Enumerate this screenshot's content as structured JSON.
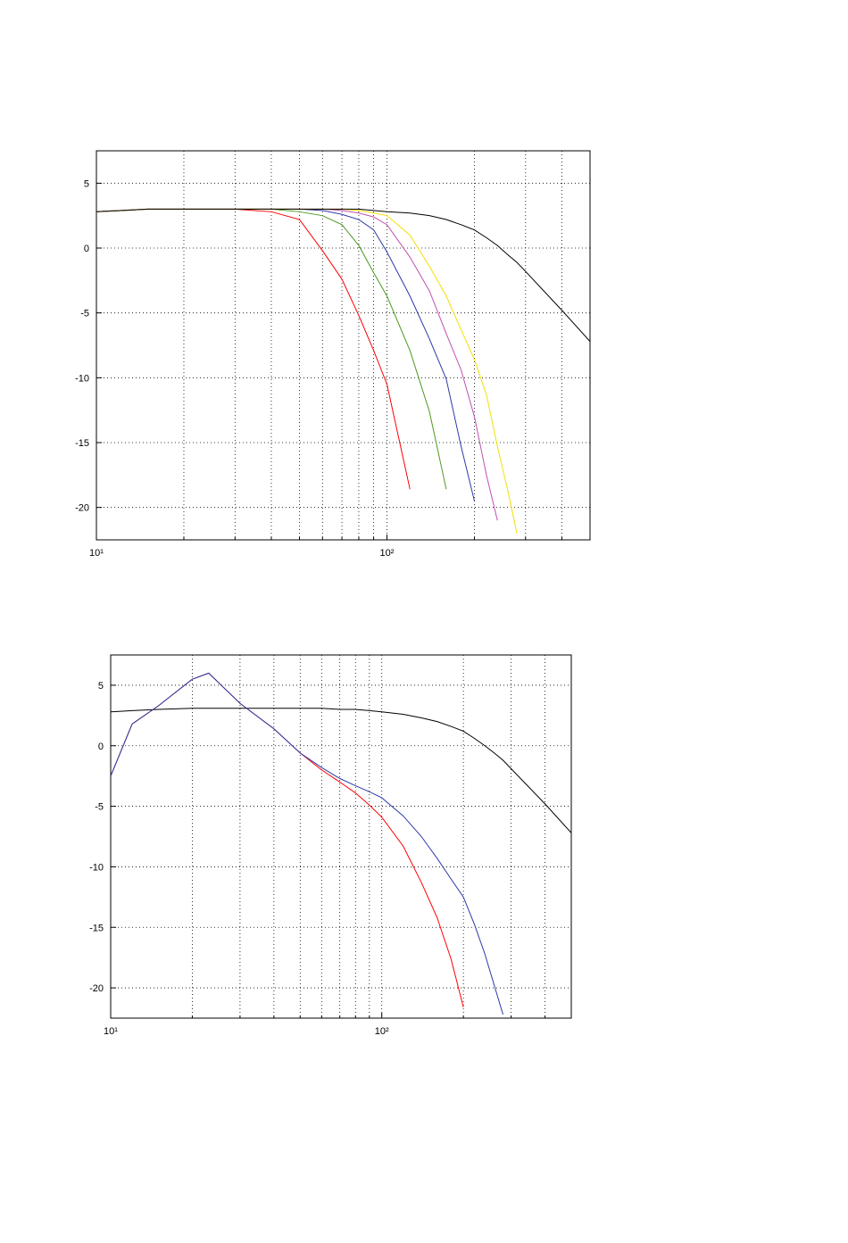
{
  "chart_data": [
    {
      "type": "line",
      "xscale": "log",
      "grid": true,
      "xlim": [
        10,
        500
      ],
      "ylim": [
        -22.5,
        7.5
      ],
      "xticks": [
        {
          "value": 10,
          "label": "10¹"
        },
        {
          "value": 100,
          "label": "10²"
        }
      ],
      "xminorticks": [
        20,
        30,
        40,
        50,
        60,
        70,
        80,
        90,
        200,
        300,
        400
      ],
      "yticks": [
        -20,
        -15,
        -10,
        -5,
        0,
        5
      ],
      "x": [
        10,
        15,
        20,
        30,
        40,
        50,
        60,
        70,
        80,
        90,
        100,
        120,
        140,
        160,
        180,
        200,
        220,
        240,
        260,
        280,
        300,
        400,
        500
      ],
      "series": [
        {
          "color": "#ff0000",
          "values": [
            2.8,
            3.0,
            3.0,
            3.0,
            2.8,
            2.2,
            -0.2,
            -2.4,
            -5.2,
            -7.9,
            -10.5,
            -18.6,
            null,
            null,
            null,
            null,
            null,
            null,
            null,
            null,
            null,
            null,
            null
          ]
        },
        {
          "color": "#4d9a1f",
          "values": [
            2.8,
            3.0,
            3.0,
            3.0,
            3.0,
            2.8,
            2.5,
            1.8,
            0.2,
            -1.9,
            -3.7,
            -7.9,
            -12.6,
            -18.6,
            null,
            null,
            null,
            null,
            null,
            null,
            null,
            null,
            null
          ]
        },
        {
          "color": "#2b3aa8",
          "values": [
            2.8,
            3.0,
            3.0,
            3.0,
            3.0,
            3.0,
            2.9,
            2.6,
            2.2,
            1.4,
            -0.3,
            -3.7,
            -7.0,
            -10.1,
            -15.3,
            -19.5,
            null,
            null,
            null,
            null,
            null,
            null,
            null
          ]
        },
        {
          "color": "#c050b0",
          "values": [
            2.8,
            3.0,
            3.0,
            3.0,
            3.0,
            3.0,
            3.0,
            2.9,
            2.7,
            2.4,
            1.8,
            -0.7,
            -3.3,
            -6.6,
            -9.4,
            -13.0,
            -17.5,
            -21.0,
            null,
            null,
            null,
            null,
            null
          ]
        },
        {
          "color": "#f2e000",
          "values": [
            2.8,
            3.0,
            3.0,
            3.0,
            3.0,
            3.0,
            3.0,
            3.0,
            2.9,
            2.7,
            2.5,
            1.0,
            -1.4,
            -3.7,
            -6.3,
            -8.6,
            -11.3,
            -15.3,
            -18.6,
            -22.0,
            null,
            null,
            null
          ]
        },
        {
          "color": "#000000",
          "values": [
            2.8,
            3.0,
            3.0,
            3.0,
            3.0,
            3.0,
            3.0,
            3.0,
            3.0,
            2.9,
            2.8,
            2.7,
            2.5,
            2.2,
            1.8,
            1.4,
            0.8,
            0.2,
            -0.5,
            -1.1,
            -1.8,
            -4.8,
            -7.2
          ]
        }
      ]
    },
    {
      "type": "line",
      "xscale": "log",
      "grid": true,
      "xlim": [
        10,
        500
      ],
      "ylim": [
        -22.5,
        7.5
      ],
      "xticks": [
        {
          "value": 10,
          "label": "10¹"
        },
        {
          "value": 100,
          "label": "10²"
        }
      ],
      "xminorticks": [
        20,
        30,
        40,
        50,
        60,
        70,
        80,
        90,
        200,
        300,
        400
      ],
      "yticks": [
        -20,
        -15,
        -10,
        -5,
        0,
        5
      ],
      "x": [
        10,
        12,
        15,
        20,
        23,
        30,
        40,
        50,
        60,
        70,
        80,
        90,
        100,
        120,
        140,
        160,
        180,
        200,
        220,
        240,
        260,
        280,
        300,
        400,
        500
      ],
      "series": [
        {
          "color": "#000000",
          "values": [
            2.8,
            2.9,
            3.0,
            3.1,
            3.1,
            3.1,
            3.1,
            3.1,
            3.1,
            3.0,
            3.0,
            2.9,
            2.8,
            2.6,
            2.3,
            2.0,
            1.6,
            1.2,
            0.6,
            0,
            -0.6,
            -1.2,
            -1.9,
            -4.8,
            -7.2
          ]
        },
        {
          "color": "#ff0000",
          "values": [
            -2.5,
            1.8,
            3.3,
            5.5,
            6.0,
            3.5,
            1.4,
            -0.6,
            -2.0,
            -3.0,
            -3.9,
            -4.9,
            -5.9,
            -8.3,
            -11.3,
            -14.2,
            -17.6,
            -21.6,
            null,
            null,
            null,
            null,
            null,
            null,
            null
          ]
        },
        {
          "color": "#2b3aa8",
          "values": [
            -2.5,
            1.8,
            3.3,
            5.5,
            6.0,
            3.5,
            1.4,
            -0.6,
            -1.8,
            -2.7,
            -3.3,
            -3.8,
            -4.3,
            -5.8,
            -7.5,
            -9.3,
            -11.0,
            -12.5,
            -14.8,
            -17.2,
            -19.8,
            -22.2,
            null,
            null,
            null
          ]
        }
      ]
    }
  ]
}
